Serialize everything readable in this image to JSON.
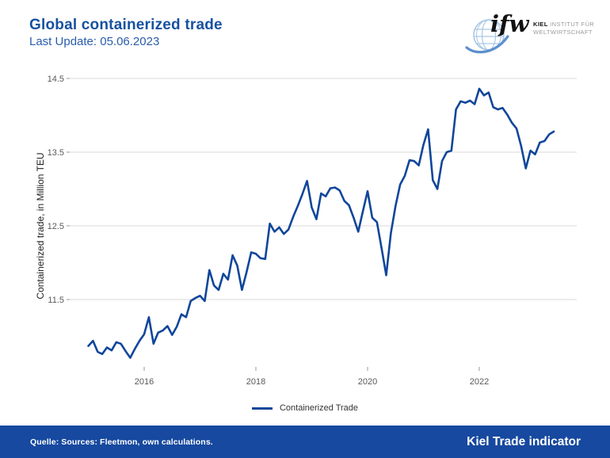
{
  "header": {
    "title": "Global containerized trade",
    "subtitle": "Last Update: 05.06.2023"
  },
  "logo": {
    "wordmark": "ifw",
    "institute_line1_bold": "KIEL",
    "institute_line1_rest": " INSTITUT FÜR",
    "institute_line2": "WELTWIRTSCHAFT"
  },
  "legend": {
    "label": "Containerized Trade"
  },
  "footer": {
    "source": "Quelle: Sources: Fleetmon, own calculations.",
    "brand": "Kiel Trade indicator"
  },
  "colors": {
    "accent_blue": "#17519f",
    "line_blue": "#10469a",
    "footer_blue": "#16499f",
    "grid_gray": "#d9d9d9",
    "tick_gray": "#999999"
  },
  "chart_data": {
    "type": "line",
    "title": "Global containerized trade",
    "xlabel": "",
    "ylabel": "Containerized trade, in Million TEU",
    "ylim": [
      10.45,
      14.75
    ],
    "xlim": [
      2014.67,
      2023.75
    ],
    "yticks": [
      14.5,
      13.5,
      12.5,
      11.5
    ],
    "xticks": [
      2016,
      2018,
      2020,
      2022
    ],
    "grid": "horizontal",
    "legend_position": "bottom",
    "x_start_year": 2015.0,
    "x_step": "monthly",
    "series": [
      {
        "name": "Containerized Trade",
        "values": [
          10.87,
          10.94,
          10.79,
          10.76,
          10.85,
          10.81,
          10.92,
          10.9,
          10.8,
          10.71,
          10.83,
          10.94,
          11.03,
          11.26,
          10.9,
          11.05,
          11.08,
          11.14,
          11.02,
          11.13,
          11.3,
          11.26,
          11.48,
          11.52,
          11.55,
          11.48,
          11.9,
          11.69,
          11.63,
          11.85,
          11.77,
          12.1,
          11.96,
          11.63,
          11.87,
          12.14,
          12.12,
          12.06,
          12.05,
          12.53,
          12.42,
          12.48,
          12.39,
          12.45,
          12.62,
          12.77,
          12.93,
          13.11,
          12.75,
          12.59,
          12.94,
          12.9,
          13.01,
          13.02,
          12.98,
          12.84,
          12.78,
          12.61,
          12.42,
          12.7,
          12.97,
          12.61,
          12.55,
          12.2,
          11.83,
          12.4,
          12.77,
          13.06,
          13.18,
          13.39,
          13.38,
          13.32,
          13.6,
          13.81,
          13.12,
          13.0,
          13.38,
          13.5,
          13.52,
          14.08,
          14.19,
          14.17,
          14.2,
          14.15,
          14.36,
          14.27,
          14.31,
          14.11,
          14.08,
          14.1,
          14.01,
          13.9,
          13.82,
          13.58,
          13.28,
          13.52,
          13.47,
          13.63,
          13.65,
          13.74,
          13.78
        ]
      }
    ]
  }
}
